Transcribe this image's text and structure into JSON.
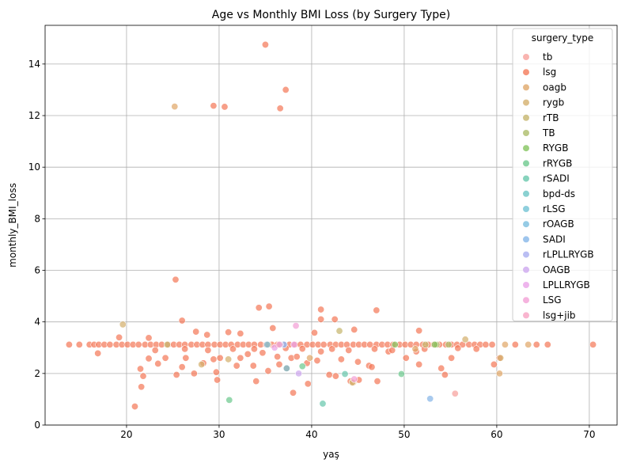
{
  "chart_data": {
    "type": "scatter",
    "title": "Age vs Monthly BMI Loss (by Surgery Type)",
    "xlabel": "yaş",
    "ylabel": "monthly_BMI_loss",
    "xlim": [
      11.2,
      73
    ],
    "ylim": [
      0,
      15.5
    ],
    "xticks": [
      20,
      30,
      40,
      50,
      60,
      70
    ],
    "yticks": [
      0,
      2,
      4,
      6,
      8,
      10,
      12,
      14
    ],
    "grid": true,
    "legend_placement": "top-right",
    "legend_title": "surgery_type",
    "series": [
      {
        "name": "tb",
        "color": "#f7a19c",
        "points": [
          [
            55.5,
            1.22
          ]
        ]
      },
      {
        "name": "lsg",
        "color": "#f47a5a",
        "points": [
          [
            13.8,
            3.12
          ],
          [
            14.9,
            3.12
          ],
          [
            16.0,
            3.12
          ],
          [
            16.5,
            3.12
          ],
          [
            17.0,
            3.12
          ],
          [
            17.6,
            3.12
          ],
          [
            18.2,
            3.12
          ],
          [
            18.9,
            3.12
          ],
          [
            19.5,
            3.12
          ],
          [
            20.1,
            3.12
          ],
          [
            20.7,
            3.12
          ],
          [
            21.3,
            3.12
          ],
          [
            22.0,
            3.12
          ],
          [
            22.6,
            3.12
          ],
          [
            23.2,
            3.12
          ],
          [
            23.8,
            3.12
          ],
          [
            24.5,
            3.12
          ],
          [
            25.1,
            3.12
          ],
          [
            25.7,
            3.12
          ],
          [
            26.3,
            3.12
          ],
          [
            27.0,
            3.12
          ],
          [
            27.6,
            3.12
          ],
          [
            28.2,
            3.12
          ],
          [
            28.8,
            3.12
          ],
          [
            29.5,
            3.12
          ],
          [
            30.1,
            3.12
          ],
          [
            30.7,
            3.12
          ],
          [
            31.3,
            3.12
          ],
          [
            32.0,
            3.12
          ],
          [
            32.6,
            3.12
          ],
          [
            33.2,
            3.12
          ],
          [
            33.8,
            3.12
          ],
          [
            34.5,
            3.12
          ],
          [
            35.1,
            3.12
          ],
          [
            35.7,
            3.12
          ],
          [
            36.3,
            3.12
          ],
          [
            37.0,
            3.12
          ],
          [
            37.6,
            3.12
          ],
          [
            38.2,
            3.12
          ],
          [
            38.8,
            3.12
          ],
          [
            39.5,
            3.12
          ],
          [
            40.1,
            3.12
          ],
          [
            40.7,
            3.12
          ],
          [
            41.3,
            3.12
          ],
          [
            42.0,
            3.12
          ],
          [
            42.6,
            3.12
          ],
          [
            43.2,
            3.12
          ],
          [
            43.8,
            3.12
          ],
          [
            44.5,
            3.12
          ],
          [
            45.1,
            3.12
          ],
          [
            45.7,
            3.12
          ],
          [
            46.3,
            3.12
          ],
          [
            47.0,
            3.12
          ],
          [
            47.6,
            3.12
          ],
          [
            48.2,
            3.12
          ],
          [
            48.8,
            3.12
          ],
          [
            49.5,
            3.12
          ],
          [
            50.1,
            3.12
          ],
          [
            50.7,
            3.12
          ],
          [
            51.3,
            3.12
          ],
          [
            52.0,
            3.12
          ],
          [
            52.6,
            3.12
          ],
          [
            53.2,
            3.12
          ],
          [
            53.8,
            3.12
          ],
          [
            54.5,
            3.12
          ],
          [
            55.1,
            3.12
          ],
          [
            55.7,
            3.12
          ],
          [
            56.3,
            3.12
          ],
          [
            57.0,
            3.12
          ],
          [
            57.6,
            3.12
          ],
          [
            58.2,
            3.12
          ],
          [
            58.8,
            3.12
          ],
          [
            59.5,
            3.12
          ],
          [
            62.0,
            3.12
          ],
          [
            64.3,
            3.12
          ],
          [
            65.5,
            3.12
          ],
          [
            70.4,
            3.12
          ],
          [
            35.0,
            14.75
          ],
          [
            37.2,
            13.0
          ],
          [
            29.4,
            12.38
          ],
          [
            30.6,
            12.34
          ],
          [
            36.6,
            12.28
          ],
          [
            25.3,
            5.64
          ],
          [
            35.4,
            4.6
          ],
          [
            34.3,
            4.55
          ],
          [
            41.0,
            4.48
          ],
          [
            42.5,
            4.1
          ],
          [
            41.0,
            4.1
          ],
          [
            26.0,
            4.05
          ],
          [
            47.0,
            4.45
          ],
          [
            19.2,
            3.4
          ],
          [
            22.4,
            3.38
          ],
          [
            27.5,
            3.62
          ],
          [
            31.0,
            3.6
          ],
          [
            32.3,
            3.55
          ],
          [
            35.8,
            3.76
          ],
          [
            40.3,
            3.58
          ],
          [
            44.6,
            3.7
          ],
          [
            51.6,
            3.66
          ],
          [
            28.7,
            3.5
          ],
          [
            16.9,
            2.78
          ],
          [
            21.5,
            2.18
          ],
          [
            21.6,
            1.48
          ],
          [
            21.8,
            1.9
          ],
          [
            20.9,
            0.72
          ],
          [
            22.4,
            2.58
          ],
          [
            23.4,
            2.38
          ],
          [
            24.2,
            2.6
          ],
          [
            25.4,
            1.95
          ],
          [
            26.0,
            2.25
          ],
          [
            26.4,
            2.6
          ],
          [
            27.3,
            2.0
          ],
          [
            28.3,
            2.4
          ],
          [
            29.4,
            2.55
          ],
          [
            29.7,
            2.05
          ],
          [
            29.8,
            1.75
          ],
          [
            30.1,
            2.6
          ],
          [
            31.9,
            2.3
          ],
          [
            32.3,
            2.6
          ],
          [
            33.1,
            2.75
          ],
          [
            33.7,
            2.3
          ],
          [
            34.0,
            1.7
          ],
          [
            34.7,
            2.8
          ],
          [
            35.3,
            2.1
          ],
          [
            36.3,
            2.65
          ],
          [
            36.5,
            2.35
          ],
          [
            37.3,
            2.2
          ],
          [
            37.8,
            2.6
          ],
          [
            38.0,
            1.25
          ],
          [
            38.4,
            2.65
          ],
          [
            39.5,
            2.4
          ],
          [
            39.6,
            1.6
          ],
          [
            40.6,
            2.5
          ],
          [
            41.0,
            2.85
          ],
          [
            41.9,
            1.95
          ],
          [
            42.6,
            1.9
          ],
          [
            43.2,
            2.55
          ],
          [
            44.2,
            1.7
          ],
          [
            45.0,
            2.45
          ],
          [
            45.1,
            1.75
          ],
          [
            46.2,
            2.3
          ],
          [
            46.5,
            2.25
          ],
          [
            47.1,
            1.7
          ],
          [
            48.3,
            2.85
          ],
          [
            50.2,
            2.6
          ],
          [
            51.3,
            2.85
          ],
          [
            51.6,
            2.35
          ],
          [
            54.0,
            2.2
          ],
          [
            54.4,
            1.95
          ],
          [
            55.1,
            2.6
          ],
          [
            59.7,
            2.35
          ],
          [
            60.3,
            2.6
          ],
          [
            23.1,
            2.9
          ],
          [
            26.3,
            2.95
          ],
          [
            28.8,
            2.9
          ],
          [
            31.5,
            2.95
          ],
          [
            33.8,
            2.95
          ],
          [
            37.2,
            2.98
          ],
          [
            39.0,
            2.96
          ],
          [
            42.2,
            2.95
          ],
          [
            44.0,
            2.9
          ],
          [
            46.8,
            2.95
          ],
          [
            48.7,
            2.9
          ],
          [
            52.2,
            2.95
          ],
          [
            55.8,
            2.98
          ],
          [
            57.8,
            2.95
          ]
        ]
      },
      {
        "name": "oagb",
        "color": "#e0a86a",
        "points": [
          [
            25.2,
            12.35
          ],
          [
            60.9,
            3.12
          ],
          [
            63.4,
            3.12
          ],
          [
            44.5,
            1.65
          ],
          [
            51.2,
            2.95
          ],
          [
            60.3,
            2.0
          ],
          [
            39.8,
            2.6
          ]
        ]
      },
      {
        "name": "rygb",
        "color": "#d4b06e",
        "points": [
          [
            19.6,
            3.9
          ],
          [
            28.1,
            2.35
          ],
          [
            31.0,
            2.55
          ],
          [
            44.4,
            1.65
          ],
          [
            56.6,
            3.32
          ],
          [
            60.4,
            2.6
          ],
          [
            35.3,
            3.12
          ]
        ]
      },
      {
        "name": "rTB",
        "color": "#c6b56e",
        "points": [
          [
            24.4,
            3.12
          ],
          [
            43.0,
            3.65
          ],
          [
            52.3,
            3.12
          ]
        ]
      },
      {
        "name": "TB",
        "color": "#adbd6a",
        "points": [
          [
            54.8,
            3.12
          ],
          [
            53.5,
            3.12
          ]
        ]
      },
      {
        "name": "RYGB",
        "color": "#85c45f",
        "points": [
          [
            49.0,
            3.12
          ],
          [
            53.3,
            3.12
          ]
        ]
      },
      {
        "name": "rRYGB",
        "color": "#6ec98f",
        "points": [
          [
            31.1,
            0.97
          ],
          [
            39.0,
            2.28
          ],
          [
            49.7,
            1.98
          ]
        ]
      },
      {
        "name": "rSADI",
        "color": "#69c8ad",
        "points": [
          [
            41.2,
            0.83
          ],
          [
            43.6,
            1.98
          ]
        ]
      },
      {
        "name": "bpd-ds",
        "color": "#6dc6c6",
        "points": [
          [
            37.0,
            3.12
          ]
        ]
      },
      {
        "name": "rLSG",
        "color": "#73c3d4",
        "points": [
          [
            37.3,
            2.2
          ]
        ]
      },
      {
        "name": "rOAGB",
        "color": "#7bbedf",
        "points": [
          [
            35.2,
            3.12
          ]
        ]
      },
      {
        "name": "SADI",
        "color": "#86b6e8",
        "points": [
          [
            52.8,
            1.02
          ]
        ]
      },
      {
        "name": "rLPLLRYGB",
        "color": "#a9aef0",
        "points": [
          [
            37.0,
            3.12
          ]
        ]
      },
      {
        "name": "OAGB",
        "color": "#cda8ef",
        "points": [
          [
            38.6,
            2.0
          ],
          [
            36.6,
            3.12
          ]
        ]
      },
      {
        "name": "LPLLRYGB",
        "color": "#eaa2e8",
        "points": [
          [
            36.0,
            3.0
          ],
          [
            38.1,
            3.12
          ]
        ]
      },
      {
        "name": "LSG",
        "color": "#f2a0d6",
        "points": [
          [
            38.3,
            3.85
          ],
          [
            44.6,
            1.78
          ]
        ]
      },
      {
        "name": "lsg+jib",
        "color": "#f7a3c3",
        "points": [
          [
            36.5,
            3.12
          ]
        ]
      }
    ]
  }
}
